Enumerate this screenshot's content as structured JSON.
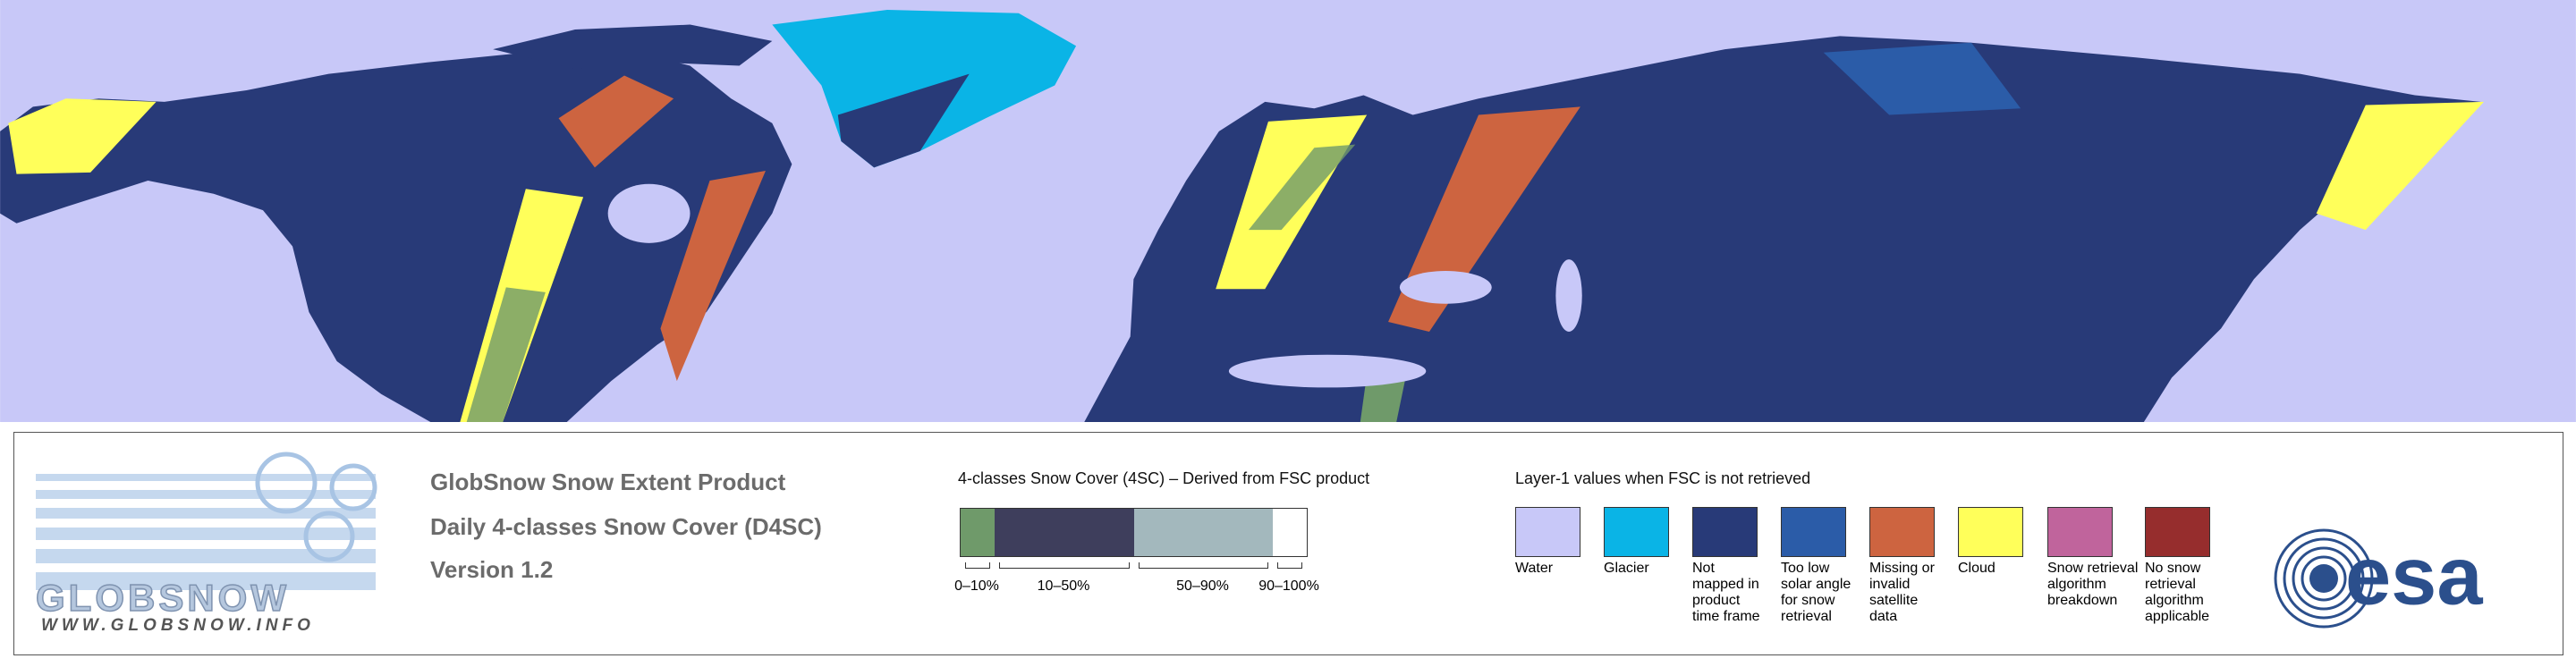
{
  "logo": {
    "name": "GLOBSNOW",
    "url": "WWW.GLOBSNOW.INFO"
  },
  "product": {
    "title": "GlobSnow Snow Extent Product",
    "subtitle": "Daily 4-classes Snow Cover (D4SC)",
    "version": "Version 1.2"
  },
  "snow_cover_legend": {
    "title": "4-classes Snow Cover (4SC) – Derived from FSC product",
    "classes": [
      {
        "label": "0–10%",
        "color": "#6f9a6a"
      },
      {
        "label": "10–50%",
        "color": "#3e3e5c"
      },
      {
        "label": "50–90%",
        "color": "#a3b8bd"
      },
      {
        "label": "90–100%",
        "color": "#ffffff"
      }
    ]
  },
  "layer1_legend": {
    "title": "Layer-1 values when FSC is not retrieved",
    "items": [
      {
        "label": "Water",
        "color": "#c8c8f8"
      },
      {
        "label": "Glacier",
        "color": "#0ab4e6"
      },
      {
        "label": "Not mapped in product time frame",
        "color": "#283a78"
      },
      {
        "label": "Too low solar angle for snow retrieval",
        "color": "#2b5ca8"
      },
      {
        "label": "Missing or invalid satellite data",
        "color": "#cd6440"
      },
      {
        "label": "Cloud",
        "color": "#ffff5a"
      },
      {
        "label": "Snow retrieval algorithm breakdown",
        "color": "#c0649c"
      },
      {
        "label": "No snow retrieval algorithm applicable",
        "color": "#962d2d"
      }
    ]
  },
  "agency_logo": "esa"
}
